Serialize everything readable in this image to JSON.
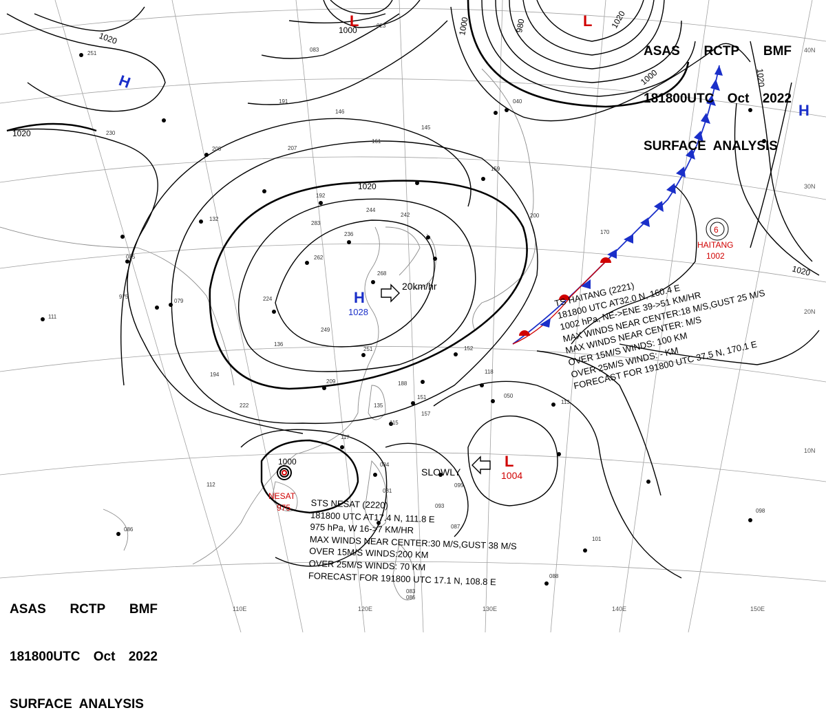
{
  "header": {
    "line1": [
      "ASAS",
      "RCTP",
      "BMF"
    ],
    "line2": [
      "181800UTC",
      "Oct",
      "2022"
    ],
    "line3": "SURFACE  ANALYSIS"
  },
  "isobar_labels": [
    "1000",
    "1020",
    "980",
    "1000",
    "1020",
    "1020",
    "1020",
    "1020",
    "1020",
    "1000",
    "1000",
    "1000"
  ],
  "pressure_systems": {
    "high_main": {
      "letter": "H",
      "value": "1028",
      "motion": "20km/hr"
    },
    "high_nw": {
      "letter": "H"
    },
    "high_ne": {
      "letter": "H"
    },
    "low_north": {
      "letter": "L"
    },
    "low_ne": {
      "letter": "L"
    },
    "low_pacific": {
      "letter": "L",
      "value": "1004",
      "motion": "SLOWLY"
    }
  },
  "storms": {
    "haitang": {
      "name": "HAITANG",
      "pressure": "1002",
      "advisory": [
        "TS  HAITANG  (2221)",
        "181800 UTC  AT32.0 N, 160.4 E",
        "1002 hPa, NE->ENE  39->51 KM/HR",
        "MAX WINDS NEAR CENTER:18 M/S,GUST 25 M/S",
        "MAX WINDS NEAR CENTER: M/S",
        "OVER 15M/S WINDS: 100 KM",
        "OVER 25M/S WINDS: - KM",
        "FORECAST FOR 191800 UTC 37.5 N, 170.1 E"
      ]
    },
    "nesat": {
      "name": "NESAT",
      "pressure": "975",
      "center_isobar": "1000",
      "advisory": [
        "STS  NESAT (2220)",
        "181800 UTC  AT17.4 N, 111.8 E",
        "975 hPa, W  16->7 KM/HR",
        "MAX WINDS NEAR CENTER:30 M/S,GUST 38 M/S",
        "OVER 15M/S WINDS:200 KM",
        "OVER 25M/S WINDS: 70 KM",
        "FORECAST FOR 191800 UTC 17.1 N, 108.8 E"
      ]
    }
  },
  "lat_lon_labels": [
    "110E",
    "120E",
    "130E",
    "140E",
    "150E",
    "10N",
    "20N",
    "30N",
    "40N"
  ],
  "station_values": [
    "023",
    "083",
    "191",
    "207",
    "146",
    "161",
    "145",
    "192",
    "244",
    "242",
    "236",
    "283",
    "262",
    "268",
    "249",
    "224",
    "251",
    "209",
    "188",
    "151",
    "135",
    "152",
    "118",
    "050",
    "113",
    "095",
    "081",
    "086",
    "098",
    "088",
    "112",
    "079",
    "975",
    "085",
    "132",
    "208",
    "230",
    "251",
    "111",
    "086",
    "159",
    "040",
    "084",
    "101",
    "087",
    "083",
    "093",
    "117",
    "115",
    "157",
    "170",
    "194",
    "136",
    "222",
    "200"
  ],
  "colors": {
    "high": "#1a2fc9",
    "low": "#d00000",
    "storm": "#d00000",
    "isobar": "#000000",
    "grid": "#9a9a9a",
    "coast": "#7a7a7a"
  },
  "icons": [
    "high-pressure-icon",
    "low-pressure-icon",
    "cold-front-icon",
    "warm-front-icon",
    "tropical-storm-icon",
    "motion-arrow-icon"
  ]
}
